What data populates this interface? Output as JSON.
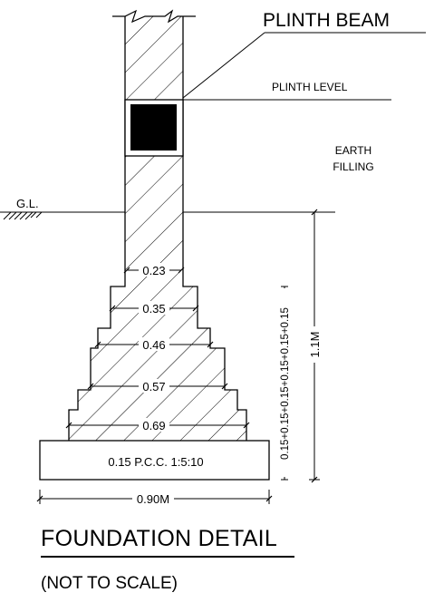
{
  "labels": {
    "plinth_beam": "PLINTH BEAM",
    "plinth_level": "PLINTH LEVEL",
    "earth_filling_line1": "EARTH",
    "earth_filling_line2": "FILLING",
    "ground_level": "G.L.",
    "pcc": "0.15 P.C.C. 1:5:10"
  },
  "widths": [
    "0.23",
    "0.35",
    "0.46",
    "0.57",
    "0.69"
  ],
  "base_width": "0.90M",
  "depth_total": "1.1M",
  "depth_breakdown": "0.15+0.15+0.15+0.15+0.15+0.15",
  "title": "FOUNDATION DETAIL",
  "subtitle": "(NOT TO SCALE)"
}
